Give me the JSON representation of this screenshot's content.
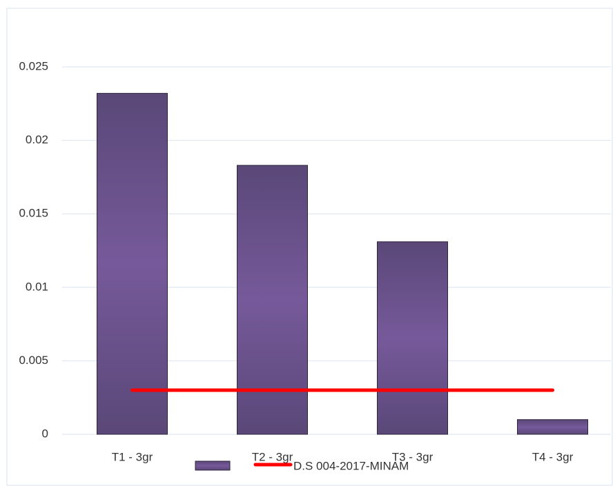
{
  "chart_data": {
    "type": "bar",
    "categories": [
      "T1 - 3gr",
      "T2 - 3gr",
      "T3 - 3gr",
      "T4 - 3gr"
    ],
    "series": [
      {
        "color": "#6a5590",
        "values": [
          0.0232,
          0.0183,
          0.0131,
          0.001
        ]
      },
      {
        "name": "D.S 004-2017-MINAM",
        "type": "line",
        "color": "#ff0000",
        "values": [
          0.003,
          0.003,
          0.003,
          0.003
        ]
      }
    ],
    "ylim": [
      0,
      0.025
    ],
    "yticks": [
      0,
      0.005,
      0.01,
      0.015,
      0.02,
      0.025
    ],
    "grid": true
  }
}
